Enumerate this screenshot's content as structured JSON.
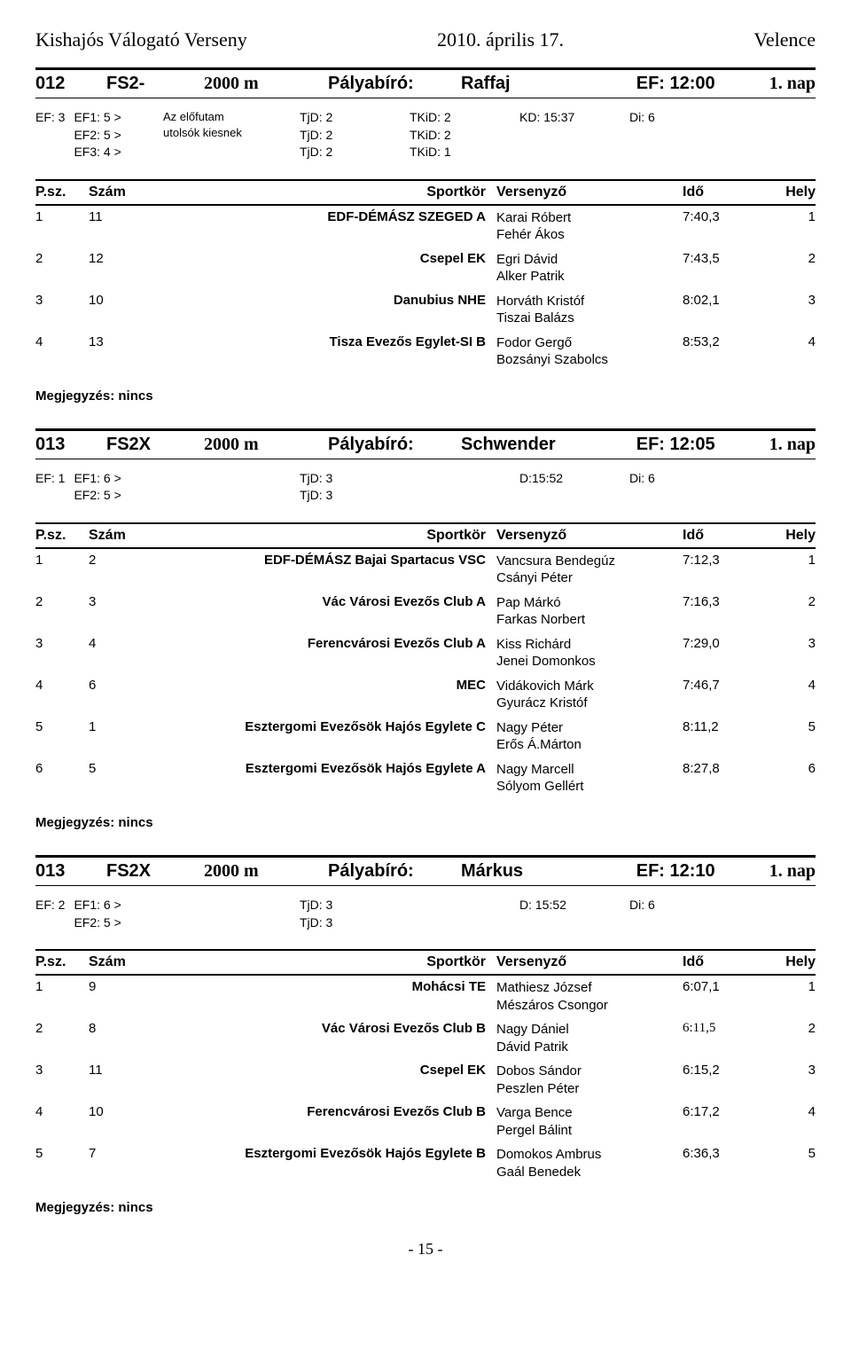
{
  "page_header": {
    "left": "Kishajós Válogató Verseny",
    "center": "2010. április 17.",
    "right": "Velence"
  },
  "labels": {
    "pblabel": "Pályabíró:",
    "psz": "P.sz.",
    "szam": "Szám",
    "club": "Sportkör",
    "competitor": "Versenyző",
    "time": "Idő",
    "place": "Hely",
    "note_label": "Megjegyzés:",
    "note_value": "nincs"
  },
  "races": [
    {
      "code": "012",
      "class": "FS2-",
      "dist": "2000 m",
      "pbname": "Raffaj",
      "ef": "EF: 12:00",
      "nap": "1. nap",
      "meta": {
        "ef_prefix": "EF: 3",
        "ef_lines": [
          "EF1: 5  >",
          "EF2: 5  >",
          "EF3: 4  >"
        ],
        "note_lines": [
          "Az előfutam",
          "utolsók kiesnek"
        ],
        "tjd": [
          "TjD: 2",
          "TjD: 2",
          "TjD: 2"
        ],
        "tkid": [
          "TKiD: 2",
          "TKiD: 2",
          "TKiD: 1"
        ],
        "kd": "KD: 15:37",
        "di": "Di: 6"
      },
      "results": [
        {
          "p": "1",
          "n": "11",
          "club": "EDF-DÉMÁSZ SZEGED A",
          "names": [
            "Karai Róbert",
            "Fehér Ákos"
          ],
          "time": "7:40,3",
          "place": "1"
        },
        {
          "p": "2",
          "n": "12",
          "club": "Csepel EK",
          "names": [
            "Egri Dávid",
            "Alker Patrik"
          ],
          "time": "7:43,5",
          "place": "2"
        },
        {
          "p": "3",
          "n": "10",
          "club": "Danubius NHE",
          "names": [
            "Horváth Kristóf",
            "Tiszai Balázs"
          ],
          "time": "8:02,1",
          "place": "3"
        },
        {
          "p": "4",
          "n": "13",
          "club": "Tisza Evezős Egylet-SI B",
          "names": [
            "Fodor Gergő",
            "Bozsányi Szabolcs"
          ],
          "time": "8:53,2",
          "place": "4"
        }
      ]
    },
    {
      "code": "013",
      "class": "FS2X",
      "dist": "2000 m",
      "pbname": "Schwender",
      "ef": "EF: 12:05",
      "nap": "1. nap",
      "meta": {
        "ef_prefix": "EF: 1",
        "ef_lines": [
          "EF1: 6  >",
          "EF2: 5  >"
        ],
        "note_lines": [],
        "tjd": [
          "TjD: 3",
          "TjD: 3"
        ],
        "tkid": [],
        "kd": "D:15:52",
        "di": "Di: 6"
      },
      "results": [
        {
          "p": "1",
          "n": "2",
          "club": "EDF-DÉMÁSZ Bajai Spartacus VSC",
          "names": [
            "Vancsura Bendegúz",
            "Csányi Péter"
          ],
          "time": "7:12,3",
          "place": "1"
        },
        {
          "p": "2",
          "n": "3",
          "club": "Vác Városi Evezős Club A",
          "names": [
            "Pap Márkó",
            "Farkas Norbert"
          ],
          "time": "7:16,3",
          "place": "2"
        },
        {
          "p": "3",
          "n": "4",
          "club": "Ferencvárosi Evezős Club A",
          "names": [
            "Kiss Richárd",
            "Jenei Domonkos"
          ],
          "time": "7:29,0",
          "place": "3"
        },
        {
          "p": "4",
          "n": "6",
          "club": "MEC",
          "names": [
            "Vidákovich Márk",
            "Gyurácz Kristóf"
          ],
          "time": "7:46,7",
          "place": "4"
        },
        {
          "p": "5",
          "n": "1",
          "club": "Esztergomi Evezősök Hajós Egylete C",
          "names": [
            "Nagy Péter",
            "Erős Á.Márton"
          ],
          "time": "8:11,2",
          "place": "5"
        },
        {
          "p": "6",
          "n": "5",
          "club": "Esztergomi Evezősök Hajós Egylete A",
          "names": [
            "Nagy Marcell",
            "Sólyom Gellért"
          ],
          "time": "8:27,8",
          "place": "6"
        }
      ]
    },
    {
      "code": "013",
      "class": "FS2X",
      "dist": "2000 m",
      "pbname": "Márkus",
      "ef": "EF: 12:10",
      "nap": "1. nap",
      "meta": {
        "ef_prefix": "EF: 2",
        "ef_lines": [
          "EF1: 6  >",
          "EF2: 5  >"
        ],
        "note_lines": [],
        "tjd": [
          "TjD: 3",
          "TjD: 3"
        ],
        "tkid": [],
        "kd": "D: 15:52",
        "di": "Di: 6"
      },
      "results": [
        {
          "p": "1",
          "n": "9",
          "club": "Mohácsi TE",
          "names": [
            "Mathiesz József",
            "Mészáros Csongor"
          ],
          "time": "6:07,1",
          "place": "1"
        },
        {
          "p": "2",
          "n": "8",
          "club": "Vác Városi Evezős Club B",
          "names": [
            "Nagy Dániel",
            "Dávid Patrik"
          ],
          "time": "6:11,5",
          "place": "2",
          "time_serif": true
        },
        {
          "p": "3",
          "n": "11",
          "club": "Csepel EK",
          "names": [
            "Dobos Sándor",
            "Peszlen Péter"
          ],
          "time": "6:15,2",
          "place": "3"
        },
        {
          "p": "4",
          "n": "10",
          "club": "Ferencvárosi Evezős Club B",
          "names": [
            "Varga Bence",
            "Pergel Bálint"
          ],
          "time": "6:17,2",
          "place": "4"
        },
        {
          "p": "5",
          "n": "7",
          "club": "Esztergomi Evezősök Hajós Egylete B",
          "names": [
            "Domokos Ambrus",
            "Gaál Benedek"
          ],
          "time": "6:36,3",
          "place": "5"
        }
      ]
    }
  ],
  "page_num": "- 15 -"
}
